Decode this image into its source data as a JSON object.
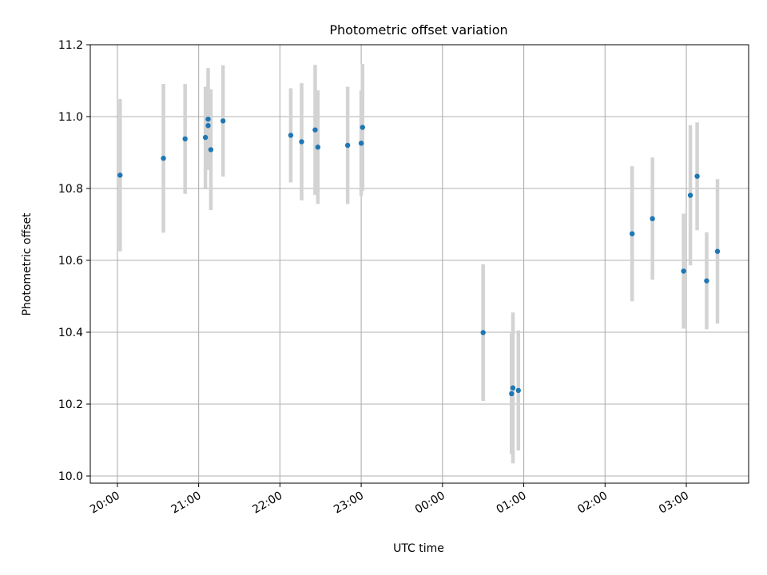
{
  "chart_data": {
    "type": "scatter",
    "title": "Photometric offset variation",
    "xlabel": "UTC time",
    "ylabel": "Photometric offset",
    "xlim": [
      "19:40",
      "03:46"
    ],
    "ylim": [
      9.98,
      11.2
    ],
    "grid": true,
    "x_ticks": [
      "20:00",
      "21:00",
      "22:00",
      "23:00",
      "00:00",
      "01:00",
      "02:00",
      "03:00"
    ],
    "y_ticks": [
      "10.0",
      "10.2",
      "10.4",
      "10.6",
      "10.8",
      "11.0",
      "11.2"
    ],
    "colors": {
      "point": "#1f77b4",
      "errorbar": "#d3d3d3",
      "grid": "#b0b0b0"
    },
    "series": [
      {
        "points": [
          {
            "x": "20:02",
            "y": 10.837,
            "yerr": 0.212
          },
          {
            "x": "20:34",
            "y": 10.884,
            "yerr": 0.207
          },
          {
            "x": "20:50",
            "y": 10.938,
            "yerr": 0.153
          },
          {
            "x": "21:05",
            "y": 10.942,
            "yerr": 0.141
          },
          {
            "x": "21:07",
            "y": 10.993,
            "yerr": 0.142
          },
          {
            "x": "21:07",
            "y": 10.975,
            "yerr": 0.107
          },
          {
            "x": "21:09",
            "y": 10.908,
            "yerr": 0.168
          },
          {
            "x": "21:18",
            "y": 10.988,
            "yerr": 0.155
          },
          {
            "x": "22:08",
            "y": 10.948,
            "yerr": 0.131
          },
          {
            "x": "22:16",
            "y": 10.93,
            "yerr": 0.163
          },
          {
            "x": "22:26",
            "y": 10.963,
            "yerr": 0.181
          },
          {
            "x": "22:28",
            "y": 10.915,
            "yerr": 0.158
          },
          {
            "x": "22:50",
            "y": 10.92,
            "yerr": 0.163
          },
          {
            "x": "23:00",
            "y": 10.926,
            "yerr": 0.147
          },
          {
            "x": "23:01",
            "y": 10.97,
            "yerr": 0.176
          },
          {
            "x": "00:30",
            "y": 10.399,
            "yerr": 0.19
          },
          {
            "x": "00:51",
            "y": 10.229,
            "yerr": 0.168
          },
          {
            "x": "00:52",
            "y": 10.245,
            "yerr": 0.21
          },
          {
            "x": "00:56",
            "y": 10.238,
            "yerr": 0.167
          },
          {
            "x": "02:20",
            "y": 10.674,
            "yerr": 0.188
          },
          {
            "x": "02:35",
            "y": 10.716,
            "yerr": 0.17
          },
          {
            "x": "02:58",
            "y": 10.57,
            "yerr": 0.16
          },
          {
            "x": "03:03",
            "y": 10.781,
            "yerr": 0.195
          },
          {
            "x": "03:08",
            "y": 10.834,
            "yerr": 0.15
          },
          {
            "x": "03:15",
            "y": 10.543,
            "yerr": 0.135
          },
          {
            "x": "03:23",
            "y": 10.625,
            "yerr": 0.201
          }
        ]
      }
    ]
  }
}
